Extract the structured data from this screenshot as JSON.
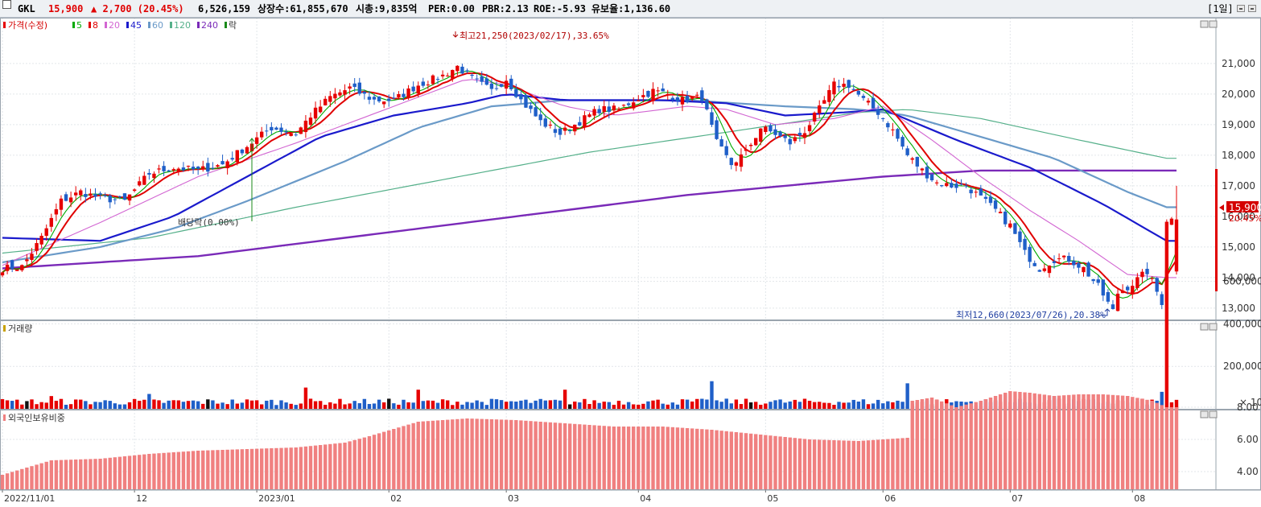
{
  "header": {
    "name": "GKL",
    "price": "15,900",
    "change": "▲ 2,700 (20.45%)",
    "volume": "6,526,159",
    "listed": "상장수:61,855,670",
    "mcap": "시총:9,835억",
    "per": "PER:0.00",
    "pbr": "PBR:2.13",
    "roe": "ROE:-5.93",
    "float": "유보율:1,136.60",
    "period": "[1일]"
  },
  "legend": {
    "price_label": "가격(수정)",
    "ma": [
      "5",
      "8",
      "20",
      "45",
      "60",
      "120",
      "240"
    ],
    "ma_colors": [
      "#00aa00",
      "#e00000",
      "#d266d2",
      "#1a1acc",
      "#6a9ac8",
      "#55b08a",
      "#7a2ab8"
    ],
    "ex_label": "락",
    "volume_label": "거래량",
    "foreign_label": "외국인보유비중"
  },
  "colors": {
    "up": "#e60000",
    "down": "#1f5fc8",
    "black": "#111111",
    "foreign": "#f08080",
    "axis_price_label_bg": "#d40000"
  },
  "annotations": {
    "high": "최고21,250(2023/02/17),33.65%",
    "low": "최저12,660(2023/07/26),20.38%",
    "dividend": "배당락(0.00%)",
    "price_tag": "15,900",
    "pct_tag": "20.45%"
  },
  "chart_data": [
    {
      "type": "candlestick",
      "title": "가격(수정)",
      "ylim": [
        12300,
        22300
      ],
      "yticks": [
        13000,
        14000,
        15000,
        16000,
        17000,
        18000,
        19000,
        20000,
        21000
      ],
      "x_labels": [
        "2022/11/01",
        "12",
        "2023/01",
        "02",
        "03",
        "04",
        "05",
        "06",
        "07",
        "08"
      ],
      "x_label_index": [
        0,
        27,
        52,
        79,
        103,
        130,
        156,
        180,
        206,
        231
      ],
      "n": 241,
      "anchors": [
        [
          0,
          14300
        ],
        [
          4,
          14350
        ],
        [
          8,
          15300
        ],
        [
          12,
          16500
        ],
        [
          16,
          16800
        ],
        [
          20,
          16600
        ],
        [
          25,
          16500
        ],
        [
          30,
          17400
        ],
        [
          35,
          17600
        ],
        [
          40,
          17500
        ],
        [
          45,
          17700
        ],
        [
          50,
          18300
        ],
        [
          55,
          18900
        ],
        [
          60,
          18700
        ],
        [
          63,
          19300
        ],
        [
          67,
          19900
        ],
        [
          71,
          20200
        ],
        [
          76,
          19800
        ],
        [
          80,
          19800
        ],
        [
          85,
          20300
        ],
        [
          90,
          20600
        ],
        [
          93,
          20900
        ],
        [
          96,
          20500
        ],
        [
          100,
          20100
        ],
        [
          103,
          20500
        ],
        [
          106,
          19800
        ],
        [
          110,
          19100
        ],
        [
          114,
          18700
        ],
        [
          118,
          19100
        ],
        [
          122,
          19500
        ],
        [
          126,
          19500
        ],
        [
          129,
          19800
        ],
        [
          133,
          20100
        ],
        [
          136,
          20000
        ],
        [
          139,
          19800
        ],
        [
          143,
          19900
        ],
        [
          146,
          18400
        ],
        [
          149,
          17700
        ],
        [
          152,
          18100
        ],
        [
          155,
          18900
        ],
        [
          158,
          18700
        ],
        [
          161,
          18400
        ],
        [
          164,
          18800
        ],
        [
          167,
          19500
        ],
        [
          170,
          20300
        ],
        [
          173,
          20300
        ],
        [
          176,
          19800
        ],
        [
          179,
          19400
        ],
        [
          182,
          18800
        ],
        [
          185,
          18000
        ],
        [
          188,
          17500
        ],
        [
          191,
          17100
        ],
        [
          194,
          17000
        ],
        [
          197,
          17000
        ],
        [
          200,
          16600
        ],
        [
          203,
          16200
        ],
        [
          206,
          15700
        ],
        [
          209,
          14800
        ],
        [
          212,
          14300
        ],
        [
          215,
          14600
        ],
        [
          218,
          14600
        ],
        [
          221,
          14300
        ],
        [
          224,
          13700
        ],
        [
          227,
          12900
        ],
        [
          228,
          13500
        ],
        [
          231,
          13800
        ],
        [
          234,
          14200
        ],
        [
          237,
          13200
        ],
        [
          238,
          15900
        ]
      ],
      "ma_anchors": {
        "ma20": [
          [
            0,
            14400
          ],
          [
            20,
            15800
          ],
          [
            40,
            17300
          ],
          [
            60,
            18400
          ],
          [
            80,
            19600
          ],
          [
            95,
            20500
          ],
          [
            103,
            20300
          ],
          [
            115,
            19600
          ],
          [
            125,
            19300
          ],
          [
            140,
            19600
          ],
          [
            148,
            19500
          ],
          [
            158,
            19000
          ],
          [
            170,
            19200
          ],
          [
            180,
            19600
          ],
          [
            190,
            18500
          ],
          [
            200,
            17300
          ],
          [
            210,
            16200
          ],
          [
            220,
            15200
          ],
          [
            230,
            14100
          ],
          [
            238,
            14000
          ]
        ],
        "ma45": [
          [
            0,
            15300
          ],
          [
            20,
            15200
          ],
          [
            35,
            16000
          ],
          [
            50,
            17300
          ],
          [
            65,
            18600
          ],
          [
            80,
            19300
          ],
          [
            95,
            19700
          ],
          [
            103,
            20000
          ],
          [
            115,
            19800
          ],
          [
            135,
            19800
          ],
          [
            148,
            19700
          ],
          [
            160,
            19300
          ],
          [
            172,
            19400
          ],
          [
            180,
            19500
          ],
          [
            195,
            18500
          ],
          [
            210,
            17600
          ],
          [
            225,
            16400
          ],
          [
            238,
            15200
          ]
        ],
        "ma60": [
          [
            0,
            14500
          ],
          [
            20,
            15000
          ],
          [
            35,
            15600
          ],
          [
            50,
            16500
          ],
          [
            70,
            17800
          ],
          [
            85,
            18900
          ],
          [
            100,
            19600
          ],
          [
            115,
            19800
          ],
          [
            140,
            19800
          ],
          [
            160,
            19600
          ],
          [
            175,
            19500
          ],
          [
            185,
            19300
          ],
          [
            200,
            18600
          ],
          [
            215,
            17900
          ],
          [
            230,
            16800
          ],
          [
            238,
            16300
          ]
        ],
        "ma120": [
          [
            0,
            14800
          ],
          [
            30,
            15300
          ],
          [
            60,
            16300
          ],
          [
            90,
            17200
          ],
          [
            120,
            18100
          ],
          [
            150,
            18800
          ],
          [
            175,
            19400
          ],
          [
            185,
            19500
          ],
          [
            200,
            19200
          ],
          [
            220,
            18500
          ],
          [
            238,
            17900
          ]
        ],
        "ma240": [
          [
            0,
            14300
          ],
          [
            40,
            14700
          ],
          [
            80,
            15500
          ],
          [
            110,
            16100
          ],
          [
            140,
            16700
          ],
          [
            160,
            17000
          ],
          [
            180,
            17300
          ],
          [
            200,
            17500
          ],
          [
            220,
            17500
          ],
          [
            238,
            17500
          ]
        ]
      }
    },
    {
      "type": "bar",
      "title": "거래량",
      "ylim": [
        0,
        650000
      ],
      "yticks": [
        200000,
        400000,
        600000
      ],
      "ytick_labels": [
        "200,000",
        "400,000",
        "600,000"
      ],
      "unit_label": "× 10",
      "spikes": [
        [
          10,
          60000
        ],
        [
          30,
          70000
        ],
        [
          62,
          100000
        ],
        [
          85,
          90000
        ],
        [
          115,
          90000
        ],
        [
          145,
          130000
        ],
        [
          185,
          120000
        ],
        [
          205,
          70000
        ],
        [
          215,
          60000
        ],
        [
          237,
          80000
        ],
        [
          238,
          652615
        ]
      ]
    },
    {
      "type": "bar",
      "title": "외국인보유비중",
      "ylim": [
        3.0,
        10.0
      ],
      "yticks": [
        4.0,
        6.0,
        8.0
      ],
      "ytick_labels": [
        "4.00",
        "6.00",
        "8.00"
      ],
      "anchors": [
        [
          0,
          3.8
        ],
        [
          10,
          4.7
        ],
        [
          20,
          4.8
        ],
        [
          30,
          5.1
        ],
        [
          40,
          5.3
        ],
        [
          50,
          5.4
        ],
        [
          60,
          5.5
        ],
        [
          70,
          5.8
        ],
        [
          75,
          6.2
        ],
        [
          85,
          7.1
        ],
        [
          95,
          7.3
        ],
        [
          105,
          7.2
        ],
        [
          115,
          7.0
        ],
        [
          125,
          6.8
        ],
        [
          135,
          6.8
        ],
        [
          145,
          6.6
        ],
        [
          155,
          6.3
        ],
        [
          165,
          6.0
        ],
        [
          175,
          5.9
        ],
        [
          180,
          6.0
        ],
        [
          185,
          6.1
        ],
        [
          186,
          8.4
        ],
        [
          190,
          8.6
        ],
        [
          195,
          8.0
        ],
        [
          200,
          8.4
        ],
        [
          206,
          9.0
        ],
        [
          210,
          8.9
        ],
        [
          215,
          8.7
        ],
        [
          220,
          8.8
        ],
        [
          225,
          8.8
        ],
        [
          230,
          8.7
        ],
        [
          235,
          8.4
        ],
        [
          238,
          8.0
        ]
      ]
    }
  ]
}
